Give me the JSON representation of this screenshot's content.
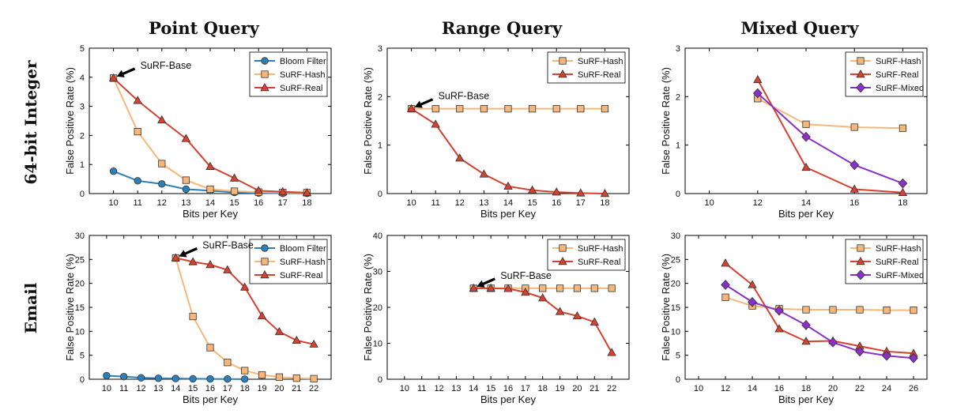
{
  "column_titles": [
    "Point Query",
    "Range Query",
    "Mixed Query"
  ],
  "row_labels": [
    "64-bit Integer",
    "Email"
  ],
  "colors": {
    "Bloom Filter": "#2c7fb8",
    "SuRF-Hash": "#f7b77a",
    "SuRF-Real": "#d7412f",
    "SuRF-Mixed": "#8b2fc9"
  },
  "chart_data": [
    {
      "type": "line",
      "row": 0,
      "col": 0,
      "xlabel": "Bits per Key",
      "ylabel": "False Positive Rate (%)",
      "xlim": [
        9,
        19
      ],
      "ylim": [
        0,
        5
      ],
      "xticks": [
        10,
        11,
        12,
        13,
        14,
        15,
        16,
        17,
        18
      ],
      "yticks": [
        0,
        1,
        2,
        3,
        4,
        5
      ],
      "legend": "top-right",
      "grid": false,
      "annotation": {
        "text": "SuRF-Base",
        "x": 10,
        "y": 3.97
      },
      "series": [
        {
          "name": "Bloom Filter",
          "marker": "circle",
          "x": [
            10,
            11,
            12,
            13,
            14,
            15,
            16,
            17,
            18
          ],
          "y": [
            0.77,
            0.44,
            0.33,
            0.15,
            0.1,
            0.04,
            0.02,
            0.01,
            0.01
          ]
        },
        {
          "name": "SuRF-Hash",
          "marker": "square",
          "x": [
            10,
            11,
            12,
            13,
            14,
            15,
            16,
            17,
            18
          ],
          "y": [
            3.97,
            2.13,
            1.03,
            0.46,
            0.15,
            0.08,
            0.05,
            0.04,
            0.03
          ]
        },
        {
          "name": "SuRF-Real",
          "marker": "triangle",
          "x": [
            10,
            11,
            12,
            13,
            14,
            15,
            16,
            17,
            18
          ],
          "y": [
            3.97,
            3.2,
            2.53,
            1.89,
            0.93,
            0.53,
            0.1,
            0.06,
            0.03
          ]
        }
      ]
    },
    {
      "type": "line",
      "row": 0,
      "col": 1,
      "xlabel": "Bits per Key",
      "ylabel": "False Positive Rate (%)",
      "xlim": [
        9,
        19
      ],
      "ylim": [
        0,
        3
      ],
      "xticks": [
        10,
        11,
        12,
        13,
        14,
        15,
        16,
        17,
        18
      ],
      "yticks": [
        0,
        1,
        2,
        3
      ],
      "legend": "top-right",
      "grid": false,
      "annotation": {
        "text": "SuRF-Base",
        "x": 10,
        "y": 1.75
      },
      "series": [
        {
          "name": "SuRF-Hash",
          "marker": "square",
          "x": [
            10,
            11,
            12,
            13,
            14,
            15,
            16,
            17,
            18
          ],
          "y": [
            1.75,
            1.75,
            1.75,
            1.75,
            1.75,
            1.75,
            1.75,
            1.75,
            1.75
          ]
        },
        {
          "name": "SuRF-Real",
          "marker": "triangle",
          "x": [
            10,
            11,
            12,
            13,
            14,
            15,
            16,
            17,
            18
          ],
          "y": [
            1.75,
            1.43,
            0.73,
            0.4,
            0.15,
            0.07,
            0.03,
            0.01,
            0.0
          ]
        }
      ]
    },
    {
      "type": "line",
      "row": 0,
      "col": 2,
      "xlabel": "Bits per Key",
      "ylabel": "False Positive Rate (%)",
      "xlim": [
        9,
        19
      ],
      "ylim": [
        0,
        3
      ],
      "xticks": [
        10,
        12,
        14,
        16,
        18
      ],
      "yticks": [
        0,
        1,
        2,
        3
      ],
      "legend": "top-right",
      "grid": false,
      "series": [
        {
          "name": "SuRF-Hash",
          "marker": "square",
          "x": [
            12,
            14,
            16,
            18
          ],
          "y": [
            1.96,
            1.43,
            1.37,
            1.35
          ]
        },
        {
          "name": "SuRF-Real",
          "marker": "triangle",
          "x": [
            12,
            14,
            16,
            18
          ],
          "y": [
            2.35,
            0.54,
            0.09,
            0.02
          ]
        },
        {
          "name": "SuRF-Mixed",
          "marker": "diamond",
          "x": [
            12,
            14,
            16,
            18
          ],
          "y": [
            2.07,
            1.17,
            0.59,
            0.21
          ]
        }
      ]
    },
    {
      "type": "line",
      "row": 1,
      "col": 0,
      "xlabel": "Bits per Key",
      "ylabel": "False Positive Rate (%)",
      "xlim": [
        9,
        23
      ],
      "ylim": [
        0,
        30
      ],
      "xticks": [
        10,
        11,
        12,
        13,
        14,
        15,
        16,
        17,
        18,
        19,
        20,
        21,
        22
      ],
      "yticks": [
        0,
        5,
        10,
        15,
        20,
        25,
        30
      ],
      "legend": "top-right",
      "grid": false,
      "annotation": {
        "text": "SuRF-Base",
        "x": 14,
        "y": 25.3
      },
      "series": [
        {
          "name": "Bloom Filter",
          "marker": "circle",
          "x": [
            10,
            11,
            12,
            13,
            14,
            15,
            16,
            17,
            18
          ],
          "y": [
            0.75,
            0.55,
            0.3,
            0.2,
            0.15,
            0.1,
            0.07,
            0.05,
            0.03
          ]
        },
        {
          "name": "SuRF-Hash",
          "marker": "square",
          "x": [
            14,
            15,
            16,
            17,
            18,
            19,
            20,
            21,
            22
          ],
          "y": [
            25.3,
            13.1,
            6.6,
            3.5,
            1.8,
            0.9,
            0.45,
            0.22,
            0.12
          ]
        },
        {
          "name": "SuRF-Real",
          "marker": "triangle",
          "x": [
            14,
            15,
            16,
            17,
            18,
            19,
            20,
            21,
            22
          ],
          "y": [
            25.3,
            24.5,
            23.9,
            22.8,
            19.2,
            13.2,
            9.9,
            8.1,
            7.3
          ]
        }
      ]
    },
    {
      "type": "line",
      "row": 1,
      "col": 1,
      "xlabel": "Bits per Key",
      "ylabel": "False Positive Rate (%)",
      "xlim": [
        9,
        23
      ],
      "ylim": [
        0,
        40
      ],
      "xticks": [
        10,
        11,
        12,
        13,
        14,
        15,
        16,
        17,
        18,
        19,
        20,
        21,
        22
      ],
      "yticks": [
        0,
        10,
        20,
        30,
        40
      ],
      "legend": "top-right",
      "grid": false,
      "annotation": {
        "text": "SuRF-Base",
        "x": 14,
        "y": 25.3
      },
      "series": [
        {
          "name": "SuRF-Hash",
          "marker": "square",
          "x": [
            14,
            15,
            16,
            17,
            18,
            19,
            20,
            21,
            22
          ],
          "y": [
            25.3,
            25.3,
            25.3,
            25.3,
            25.3,
            25.3,
            25.3,
            25.3,
            25.3
          ]
        },
        {
          "name": "SuRF-Real",
          "marker": "triangle",
          "x": [
            14,
            15,
            16,
            17,
            18,
            19,
            20,
            21,
            22
          ],
          "y": [
            25.3,
            25.3,
            25.2,
            24.2,
            22.6,
            18.8,
            17.6,
            15.9,
            7.4
          ]
        }
      ]
    },
    {
      "type": "line",
      "row": 1,
      "col": 2,
      "xlabel": "Bits per Key",
      "ylabel": "False Positive Rate (%)",
      "xlim": [
        9,
        27
      ],
      "ylim": [
        0,
        30
      ],
      "xticks": [
        10,
        12,
        14,
        16,
        18,
        20,
        22,
        24,
        26
      ],
      "yticks": [
        0,
        5,
        10,
        15,
        20,
        25,
        30
      ],
      "legend": "top-right",
      "grid": false,
      "series": [
        {
          "name": "SuRF-Hash",
          "marker": "square",
          "x": [
            12,
            14,
            16,
            18,
            20,
            22,
            24,
            26
          ],
          "y": [
            17.1,
            15.3,
            14.7,
            14.5,
            14.5,
            14.5,
            14.4,
            14.4
          ]
        },
        {
          "name": "SuRF-Real",
          "marker": "triangle",
          "x": [
            12,
            14,
            16,
            18,
            20,
            22,
            24,
            26
          ],
          "y": [
            24.2,
            19.7,
            10.5,
            7.9,
            8.0,
            6.9,
            5.8,
            5.4
          ]
        },
        {
          "name": "SuRF-Mixed",
          "marker": "diamond",
          "x": [
            12,
            14,
            16,
            18,
            20,
            22,
            24,
            26
          ],
          "y": [
            19.7,
            16.1,
            14.3,
            11.3,
            7.7,
            5.8,
            4.9,
            4.4
          ]
        }
      ]
    }
  ]
}
